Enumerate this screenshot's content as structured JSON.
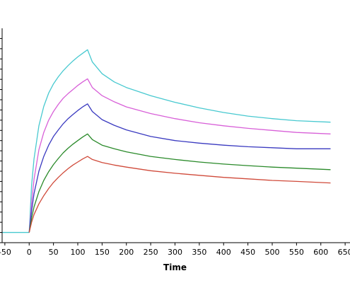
{
  "chart_data": {
    "type": "line",
    "title": "",
    "xlabel": "Time",
    "ylabel": "",
    "xlim": [
      -60,
      660
    ],
    "ylim": [
      -2,
      40
    ],
    "grid": false,
    "x_ticks": [
      -50,
      0,
      50,
      100,
      150,
      200,
      250,
      300,
      350,
      400,
      450,
      500,
      550,
      600,
      650
    ],
    "x_tick_labels": [
      "-50",
      "0",
      "50",
      "100",
      "150",
      "200",
      "250",
      "300",
      "350",
      "400",
      "450",
      "500",
      "550",
      "600",
      "650"
    ],
    "y_ticks": [
      0,
      2,
      4,
      6,
      8,
      10,
      12,
      14,
      16,
      18,
      20,
      22,
      24,
      26,
      28,
      30,
      32,
      34,
      36,
      38
    ],
    "baseline_x": [
      -55,
      0
    ],
    "series": [
      {
        "color": "#48c9d0",
        "x": [
          0,
          5,
          10,
          20,
          30,
          40,
          50,
          60,
          70,
          80,
          90,
          100,
          110,
          120,
          130,
          150,
          175,
          200,
          250,
          300,
          350,
          400,
          450,
          500,
          550,
          620
        ],
        "y": [
          0,
          9.3,
          14.4,
          20.9,
          24.7,
          27.3,
          29.1,
          30.5,
          31.7,
          32.7,
          33.6,
          34.4,
          35.1,
          35.8,
          33.4,
          31.1,
          29.5,
          28.4,
          26.8,
          25.5,
          24.4,
          23.5,
          22.8,
          22.3,
          21.9,
          21.6
        ]
      },
      {
        "color": "#d860d8",
        "x": [
          0,
          5,
          10,
          20,
          30,
          40,
          50,
          60,
          70,
          80,
          90,
          100,
          110,
          120,
          130,
          150,
          175,
          200,
          250,
          300,
          350,
          400,
          450,
          500,
          550,
          620
        ],
        "y": [
          0,
          5.8,
          10.4,
          16.2,
          19.6,
          22.0,
          23.7,
          25.1,
          26.3,
          27.2,
          28.0,
          28.8,
          29.5,
          30.1,
          28.4,
          26.8,
          25.6,
          24.6,
          23.3,
          22.3,
          21.5,
          20.9,
          20.4,
          20.0,
          19.6,
          19.3
        ]
      },
      {
        "color": "#3a3ac0",
        "x": [
          0,
          5,
          10,
          20,
          30,
          40,
          50,
          60,
          70,
          80,
          90,
          100,
          110,
          120,
          130,
          150,
          175,
          200,
          250,
          300,
          350,
          400,
          450,
          500,
          550,
          620
        ],
        "y": [
          0,
          4.2,
          7.6,
          12.0,
          14.9,
          17.1,
          18.8,
          20.1,
          21.3,
          22.3,
          23.1,
          23.9,
          24.6,
          25.2,
          23.7,
          22.1,
          21.0,
          20.1,
          18.8,
          18.0,
          17.5,
          17.1,
          16.8,
          16.6,
          16.4,
          16.4
        ]
      },
      {
        "color": "#2a8a2a",
        "x": [
          0,
          5,
          10,
          20,
          30,
          40,
          50,
          60,
          70,
          80,
          90,
          100,
          110,
          120,
          130,
          150,
          175,
          200,
          250,
          300,
          350,
          400,
          450,
          500,
          550,
          620
        ],
        "y": [
          0,
          2.8,
          5.0,
          8.0,
          10.2,
          11.9,
          13.3,
          14.5,
          15.6,
          16.5,
          17.3,
          18.0,
          18.7,
          19.3,
          18.2,
          17.1,
          16.4,
          15.8,
          14.9,
          14.3,
          13.8,
          13.4,
          13.1,
          12.8,
          12.6,
          12.3
        ]
      },
      {
        "color": "#d04a3a",
        "x": [
          0,
          5,
          10,
          20,
          30,
          40,
          50,
          60,
          70,
          80,
          90,
          100,
          110,
          120,
          130,
          150,
          175,
          200,
          250,
          300,
          350,
          400,
          450,
          500,
          550,
          620
        ],
        "y": [
          0,
          2.0,
          3.5,
          5.6,
          7.2,
          8.6,
          9.8,
          10.8,
          11.7,
          12.5,
          13.2,
          13.8,
          14.4,
          14.9,
          14.3,
          13.7,
          13.2,
          12.8,
          12.1,
          11.6,
          11.2,
          10.8,
          10.5,
          10.2,
          10.0,
          9.7
        ]
      }
    ]
  }
}
